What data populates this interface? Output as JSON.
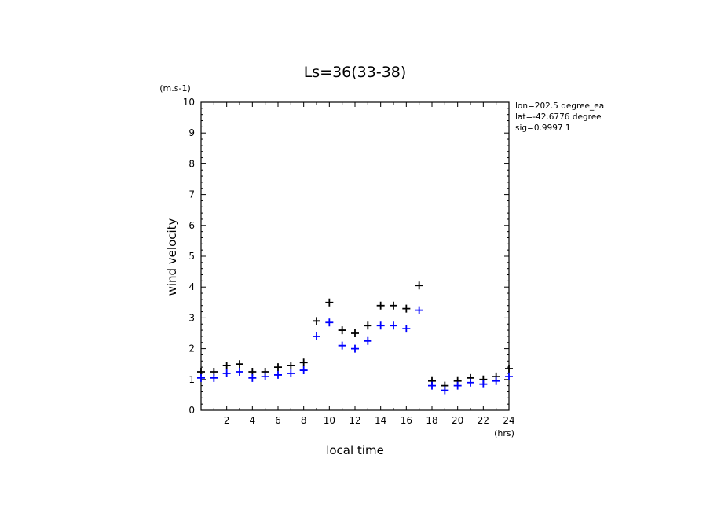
{
  "chart_data": {
    "type": "scatter",
    "title": "Ls=36(33-38)",
    "xlabel": "local time",
    "ylabel": "wind velocity",
    "x_unit": "(hrs)",
    "y_unit": "(m.s-1)",
    "xlim": [
      0,
      24
    ],
    "ylim": [
      0,
      10
    ],
    "x_ticks": [
      "2",
      "4",
      "6",
      "8",
      "10",
      "12",
      "14",
      "16",
      "18",
      "20",
      "22",
      "24"
    ],
    "y_ticks": [
      "0",
      "1",
      "2",
      "3",
      "4",
      "5",
      "6",
      "7",
      "8",
      "9",
      "10"
    ],
    "grid": false,
    "info_lines": [
      "lon=202.5 degree_ea",
      "lat=-42.6776 degree",
      "sig=0.9997 1"
    ],
    "series": [
      {
        "color": "#000000",
        "x": [
          0,
          1,
          2,
          3,
          4,
          5,
          6,
          7,
          8,
          9,
          10,
          11,
          12,
          13,
          14,
          15,
          16,
          17,
          18,
          19,
          20,
          21,
          22,
          23,
          24
        ],
        "y": [
          1.25,
          1.25,
          1.45,
          1.5,
          1.25,
          1.25,
          1.4,
          1.45,
          1.55,
          2.9,
          3.5,
          2.6,
          2.5,
          2.75,
          3.4,
          3.4,
          3.3,
          4.05,
          0.95,
          0.8,
          0.95,
          1.05,
          1.0,
          1.1,
          1.35
        ]
      },
      {
        "color": "#0000ff",
        "x": [
          0,
          1,
          2,
          3,
          4,
          5,
          6,
          7,
          8,
          9,
          10,
          11,
          12,
          13,
          14,
          15,
          16,
          17,
          18,
          19,
          20,
          21,
          22,
          23,
          24
        ],
        "y": [
          1.05,
          1.05,
          1.2,
          1.25,
          1.05,
          1.1,
          1.15,
          1.2,
          1.3,
          2.4,
          2.85,
          2.1,
          2.0,
          2.25,
          2.75,
          2.75,
          2.65,
          3.25,
          0.8,
          0.65,
          0.8,
          0.9,
          0.85,
          0.95,
          1.1
        ]
      }
    ]
  }
}
